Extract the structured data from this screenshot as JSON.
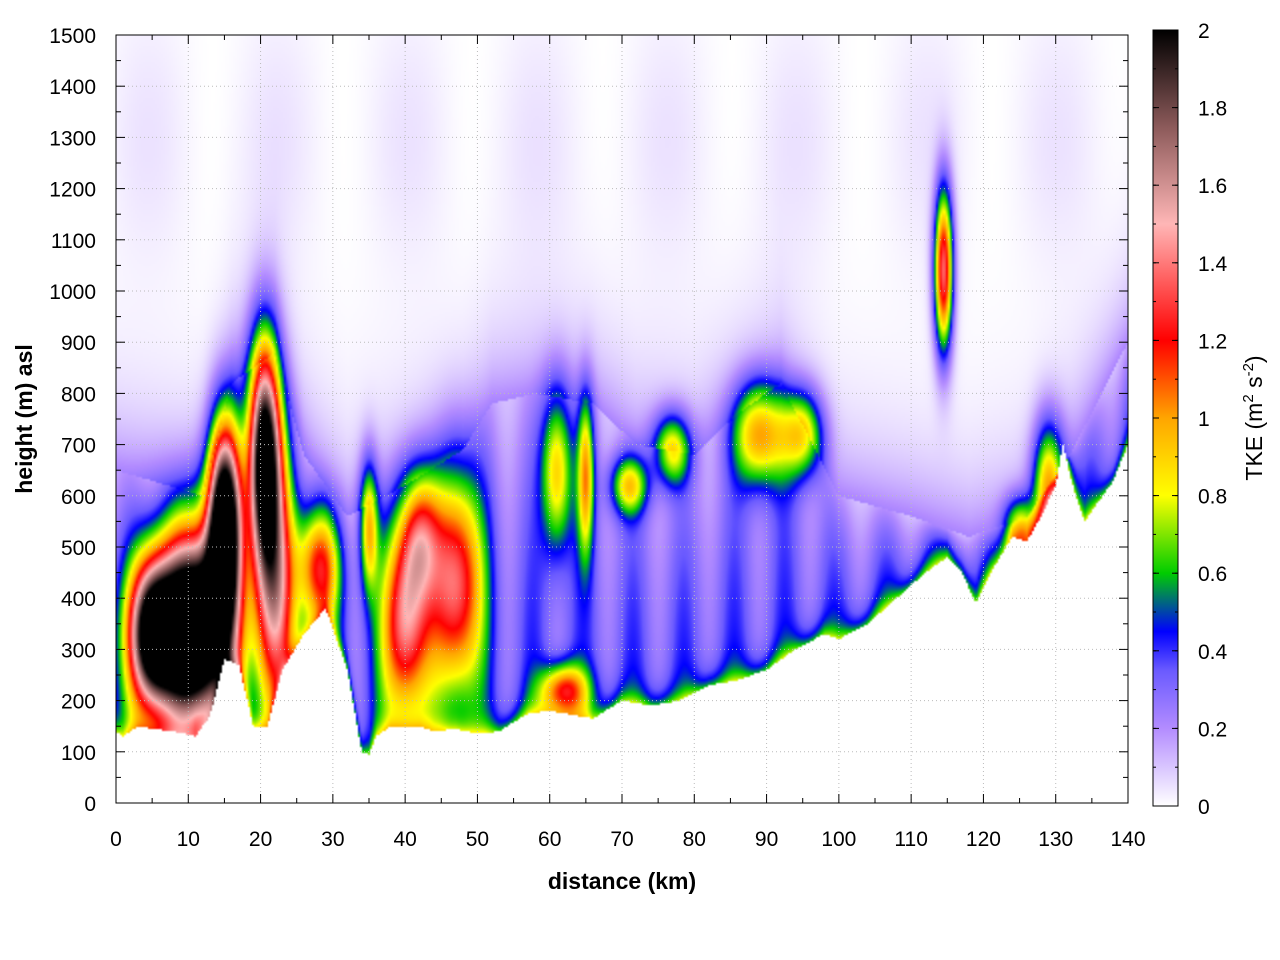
{
  "chart_data": {
    "type": "heatmap",
    "xlabel": "distance (km)",
    "ylabel": "height (m) asl",
    "colorbar_label": "TKE (m² s⁻²)",
    "colorbar_label_parts": {
      "main": "TKE (m",
      "sup1": "2",
      "mid": " s",
      "sup2": "-2",
      "end": ")"
    },
    "xlim": [
      0,
      140
    ],
    "ylim": [
      0,
      1500
    ],
    "clim": [
      0,
      2
    ],
    "x_ticks": [
      "0",
      "10",
      "20",
      "30",
      "40",
      "50",
      "60",
      "70",
      "80",
      "90",
      "100",
      "110",
      "120",
      "130",
      "140"
    ],
    "y_ticks": [
      "0",
      "100",
      "200",
      "300",
      "400",
      "500",
      "600",
      "700",
      "800",
      "900",
      "1000",
      "1100",
      "1200",
      "1300",
      "1400",
      "1500"
    ],
    "colorbar_ticks": [
      "0",
      "0.2",
      "0.4",
      "0.6",
      "0.8",
      "1",
      "1.2",
      "1.4",
      "1.6",
      "1.8",
      "2"
    ],
    "grid": true,
    "colormap": [
      {
        "v": 0.0,
        "color": "#ffffff"
      },
      {
        "v": 0.2,
        "color": "#b38cff"
      },
      {
        "v": 0.35,
        "color": "#6a5aff"
      },
      {
        "v": 0.45,
        "color": "#0000ff"
      },
      {
        "v": 0.6,
        "color": "#00cc00"
      },
      {
        "v": 0.8,
        "color": "#ffff00"
      },
      {
        "v": 1.0,
        "color": "#ffa500"
      },
      {
        "v": 1.2,
        "color": "#ff0000"
      },
      {
        "v": 1.5,
        "color": "#ffb6b6"
      },
      {
        "v": 1.75,
        "color": "#8c5a5a"
      },
      {
        "v": 2.0,
        "color": "#000000"
      }
    ],
    "terrain_height_m": {
      "x": [
        0,
        1,
        3,
        5,
        8,
        11,
        13,
        15,
        17,
        19,
        21,
        23,
        26,
        29,
        32,
        34,
        35,
        36,
        38,
        42,
        44,
        47,
        50,
        53,
        57,
        60,
        64,
        66,
        70,
        74,
        78,
        82,
        86,
        90,
        94,
        98,
        100,
        104,
        108,
        112,
        115,
        117,
        119,
        121,
        124,
        126,
        128,
        130,
        131,
        132,
        133,
        134,
        136,
        138,
        140
      ],
      "y": [
        140,
        130,
        150,
        145,
        140,
        130,
        170,
        280,
        270,
        150,
        150,
        260,
        330,
        380,
        260,
        100,
        95,
        130,
        150,
        150,
        140,
        145,
        135,
        140,
        175,
        180,
        170,
        165,
        200,
        190,
        200,
        230,
        240,
        260,
        300,
        330,
        320,
        350,
        400,
        450,
        480,
        450,
        390,
        450,
        520,
        510,
        560,
        620,
        700,
        640,
        590,
        550,
        590,
        630,
        700
      ]
    },
    "features": [
      {
        "x": 11,
        "z": 340,
        "sx": 3.6,
        "sz": 130,
        "a": 2.6
      },
      {
        "x": 5,
        "z": 330,
        "sx": 2.2,
        "sz": 100,
        "a": 1.9
      },
      {
        "x": 15,
        "z": 550,
        "sx": 1.6,
        "sz": 130,
        "a": 2.2
      },
      {
        "x": 20.5,
        "z": 680,
        "sx": 1.5,
        "sz": 150,
        "a": 2.0
      },
      {
        "x": 22,
        "z": 420,
        "sx": 2.0,
        "sz": 180,
        "a": 1.1
      },
      {
        "x": 28,
        "z": 460,
        "sx": 2.0,
        "sz": 80,
        "a": 0.9
      },
      {
        "x": 35,
        "z": 540,
        "sx": 0.9,
        "sz": 90,
        "a": 0.75
      },
      {
        "x": 40,
        "z": 350,
        "sx": 2.2,
        "sz": 130,
        "a": 1.15
      },
      {
        "x": 42,
        "z": 520,
        "sx": 2.0,
        "sz": 90,
        "a": 0.8
      },
      {
        "x": 47,
        "z": 430,
        "sx": 2.5,
        "sz": 150,
        "a": 1.15
      },
      {
        "x": 61,
        "z": 650,
        "sx": 1.5,
        "sz": 110,
        "a": 0.72
      },
      {
        "x": 65,
        "z": 640,
        "sx": 0.8,
        "sz": 110,
        "a": 0.75
      },
      {
        "x": 62,
        "z": 220,
        "sx": 2.2,
        "sz": 35,
        "a": 0.9
      },
      {
        "x": 71,
        "z": 620,
        "sx": 1.8,
        "sz": 40,
        "a": 0.68
      },
      {
        "x": 77,
        "z": 690,
        "sx": 1.8,
        "sz": 50,
        "a": 0.68
      },
      {
        "x": 89,
        "z": 720,
        "sx": 2.5,
        "sz": 70,
        "a": 0.85
      },
      {
        "x": 95,
        "z": 720,
        "sx": 2.0,
        "sz": 60,
        "a": 0.7
      },
      {
        "x": 114.5,
        "z": 1040,
        "sx": 0.9,
        "sz": 110,
        "a": 1.35
      },
      {
        "x": 129,
        "z": 620,
        "sx": 1.5,
        "sz": 90,
        "a": 0.8
      },
      {
        "x": 125,
        "z": 540,
        "sx": 1.5,
        "sz": 40,
        "a": 0.6
      }
    ]
  }
}
